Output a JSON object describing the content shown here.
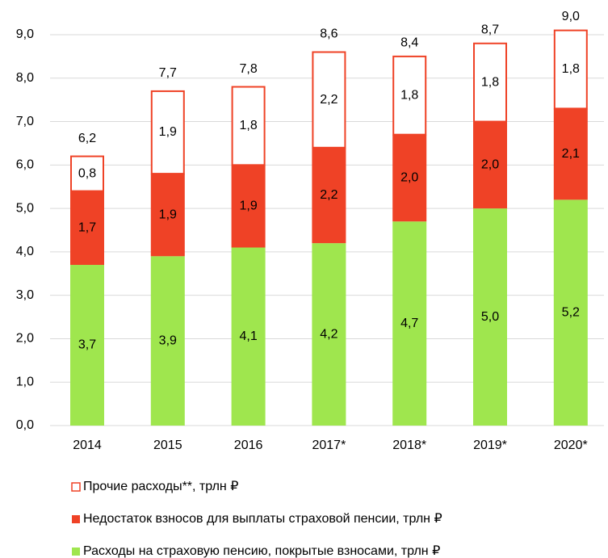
{
  "chart_data": {
    "type": "stacked_bar",
    "categories": [
      "2014",
      "2015",
      "2016",
      "2017*",
      "2018*",
      "2019*",
      "2020*"
    ],
    "series": [
      {
        "name": "Расходы на страховую пенсию, покрытые взносами, трлн ₽",
        "color": "#9fe64e",
        "values": [
          3.7,
          3.9,
          4.1,
          4.2,
          4.7,
          5.0,
          5.2
        ],
        "value_labels": [
          "3,7",
          "3,9",
          "4,1",
          "4,2",
          "4,7",
          "5,0",
          "5,2"
        ]
      },
      {
        "name": "Недостаток взносов для выплаты страховой пенсии, трлн ₽",
        "color": "#ef4226",
        "values": [
          1.7,
          1.9,
          1.9,
          2.2,
          2.0,
          2.0,
          2.1
        ],
        "value_labels": [
          "1,7",
          "1,9",
          "1,9",
          "2,2",
          "2,0",
          "2,0",
          "2,1"
        ]
      },
      {
        "name": "Прочие расходы**, трлн ₽",
        "color": "#ffffff",
        "stroke": "#ef4226",
        "values": [
          0.8,
          1.9,
          1.8,
          2.2,
          1.8,
          1.8,
          1.8
        ],
        "value_labels": [
          "0,8",
          "1,9",
          "1,8",
          "2,2",
          "1,8",
          "1,8",
          "1,8"
        ]
      }
    ],
    "totals": {
      "values": [
        6.2,
        7.7,
        7.8,
        8.6,
        8.4,
        8.7,
        9.0
      ],
      "value_labels": [
        "6,2",
        "7,7",
        "7,8",
        "8,6",
        "8,4",
        "8,7",
        "9,0"
      ]
    },
    "ylim": [
      0,
      9
    ],
    "yticks": [
      {
        "value": 0,
        "label": "0,0"
      },
      {
        "value": 1,
        "label": "1,0"
      },
      {
        "value": 2,
        "label": "2,0"
      },
      {
        "value": 3,
        "label": "3,0"
      },
      {
        "value": 4,
        "label": "4,0"
      },
      {
        "value": 5,
        "label": "5,0"
      },
      {
        "value": 6,
        "label": "6,0"
      },
      {
        "value": 7,
        "label": "7,0"
      },
      {
        "value": 8,
        "label": "8,0"
      },
      {
        "value": 9,
        "label": "9,0"
      }
    ],
    "grid": true
  }
}
